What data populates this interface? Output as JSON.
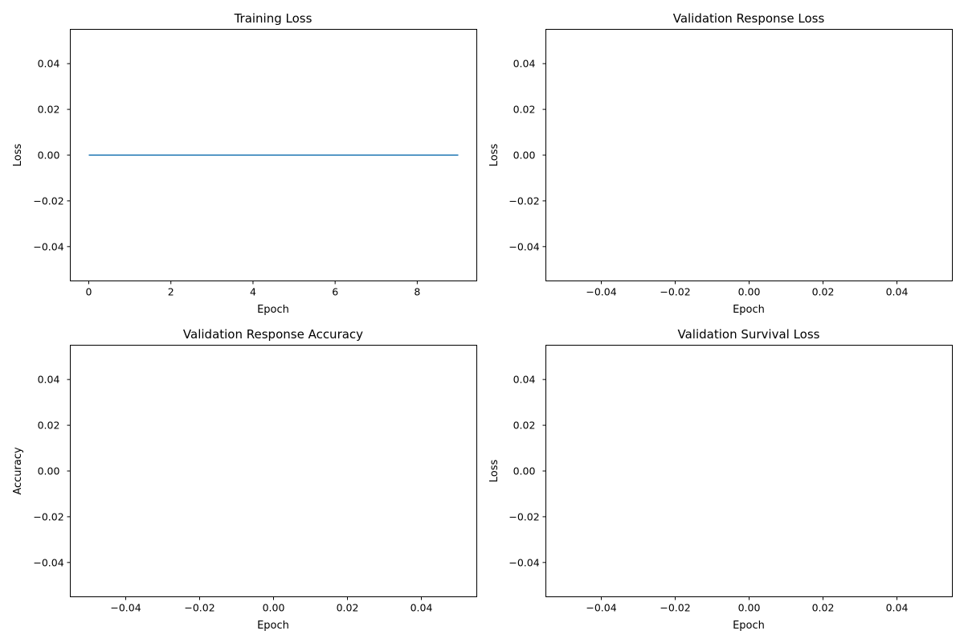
{
  "chart_data": [
    {
      "type": "line",
      "title": "Training Loss",
      "xlabel": "Epoch",
      "ylabel": "Loss",
      "xlim": [
        -0.45,
        9.45
      ],
      "ylim": [
        -0.055,
        0.055
      ],
      "xticks": [
        0,
        2,
        4,
        6,
        8
      ],
      "xtick_labels": [
        "0",
        "2",
        "4",
        "6",
        "8"
      ],
      "yticks": [
        -0.04,
        -0.02,
        0.0,
        0.02,
        0.04
      ],
      "ytick_labels": [
        "−0.04",
        "−0.02",
        "0.00",
        "0.02",
        "0.04"
      ],
      "grid": false,
      "series": [
        {
          "color": "#1f77b4",
          "x": [
            0,
            1,
            2,
            3,
            4,
            5,
            6,
            7,
            8,
            9
          ],
          "y": [
            0,
            0,
            0,
            0,
            0,
            0,
            0,
            0,
            0,
            0
          ]
        }
      ]
    },
    {
      "type": "line",
      "title": "Validation Response Loss",
      "xlabel": "Epoch",
      "ylabel": "Loss",
      "xlim": [
        -0.055,
        0.055
      ],
      "ylim": [
        -0.055,
        0.055
      ],
      "xticks": [
        -0.04,
        -0.02,
        0.0,
        0.02,
        0.04
      ],
      "xtick_labels": [
        "−0.04",
        "−0.02",
        "0.00",
        "0.02",
        "0.04"
      ],
      "yticks": [
        -0.04,
        -0.02,
        0.0,
        0.02,
        0.04
      ],
      "ytick_labels": [
        "−0.04",
        "−0.02",
        "0.00",
        "0.02",
        "0.04"
      ],
      "grid": false,
      "series": []
    },
    {
      "type": "line",
      "title": "Validation Response Accuracy",
      "xlabel": "Epoch",
      "ylabel": "Accuracy",
      "xlim": [
        -0.055,
        0.055
      ],
      "ylim": [
        -0.055,
        0.055
      ],
      "xticks": [
        -0.04,
        -0.02,
        0.0,
        0.02,
        0.04
      ],
      "xtick_labels": [
        "−0.04",
        "−0.02",
        "0.00",
        "0.02",
        "0.04"
      ],
      "yticks": [
        -0.04,
        -0.02,
        0.0,
        0.02,
        0.04
      ],
      "ytick_labels": [
        "−0.04",
        "−0.02",
        "0.00",
        "0.02",
        "0.04"
      ],
      "grid": false,
      "series": []
    },
    {
      "type": "line",
      "title": "Validation Survival Loss",
      "xlabel": "Epoch",
      "ylabel": "Loss",
      "xlim": [
        -0.055,
        0.055
      ],
      "ylim": [
        -0.055,
        0.055
      ],
      "xticks": [
        -0.04,
        -0.02,
        0.0,
        0.02,
        0.04
      ],
      "xtick_labels": [
        "−0.04",
        "−0.02",
        "0.00",
        "0.02",
        "0.04"
      ],
      "yticks": [
        -0.04,
        -0.02,
        0.0,
        0.02,
        0.04
      ],
      "ytick_labels": [
        "−0.04",
        "−0.02",
        "0.00",
        "0.02",
        "0.04"
      ],
      "grid": false,
      "series": []
    }
  ]
}
